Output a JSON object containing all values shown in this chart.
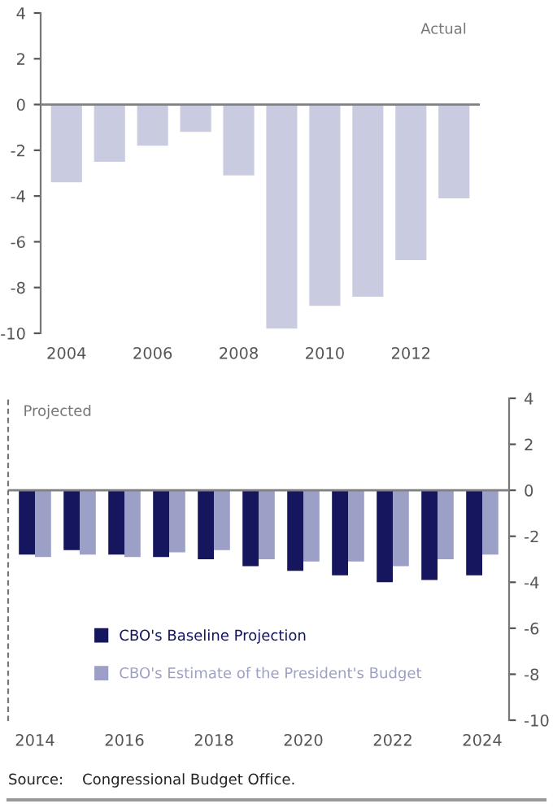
{
  "chart_data": [
    {
      "type": "bar",
      "categories": [
        "2004",
        null,
        "2006",
        null,
        "2008",
        null,
        "2010",
        null,
        "2012",
        null
      ],
      "series": [
        {
          "color": "#c9cbe0",
          "values": [
            -3.4,
            -2.5,
            -1.8,
            -1.2,
            -3.1,
            -9.8,
            -8.8,
            -8.4,
            -6.8,
            -4.1
          ]
        }
      ],
      "ylim": [
        -10,
        4
      ],
      "yticks": [
        -10,
        -8,
        -6,
        -4,
        -2,
        0,
        2,
        4
      ],
      "grid": false,
      "legend": false,
      "ref_lines": [
        {
          "axis": "y",
          "value": 0,
          "color": "#808080"
        }
      ],
      "annotations": [
        "Actual"
      ]
    },
    {
      "type": "bar",
      "categories": [
        "2014",
        null,
        "2016",
        null,
        "2018",
        null,
        "2020",
        null,
        "2022",
        null,
        "2024"
      ],
      "series": [
        {
          "name": "CBO's Baseline Projection",
          "color": "#15165e",
          "values": [
            -2.8,
            -2.6,
            -2.8,
            -2.9,
            -3.0,
            -3.3,
            -3.5,
            -3.7,
            -4.0,
            -3.9,
            -3.7
          ]
        },
        {
          "name": "CBO's Estimate of the President's Budget",
          "color": "#9c9fc6",
          "values": [
            -2.9,
            -2.8,
            -2.9,
            -2.7,
            -2.6,
            -3.0,
            -3.1,
            -3.1,
            -3.3,
            -3.0,
            -2.8
          ]
        }
      ],
      "ylim": [
        -10,
        4
      ],
      "yticks": [
        -10,
        -8,
        -6,
        -4,
        -2,
        0,
        2,
        4
      ],
      "grid": false,
      "legend": "bottom",
      "ref_lines": [
        {
          "axis": "y",
          "value": 0,
          "color": "#808080"
        }
      ],
      "annotations": [
        "Projected",
        "Source:    Congressional Budget Office."
      ]
    }
  ]
}
